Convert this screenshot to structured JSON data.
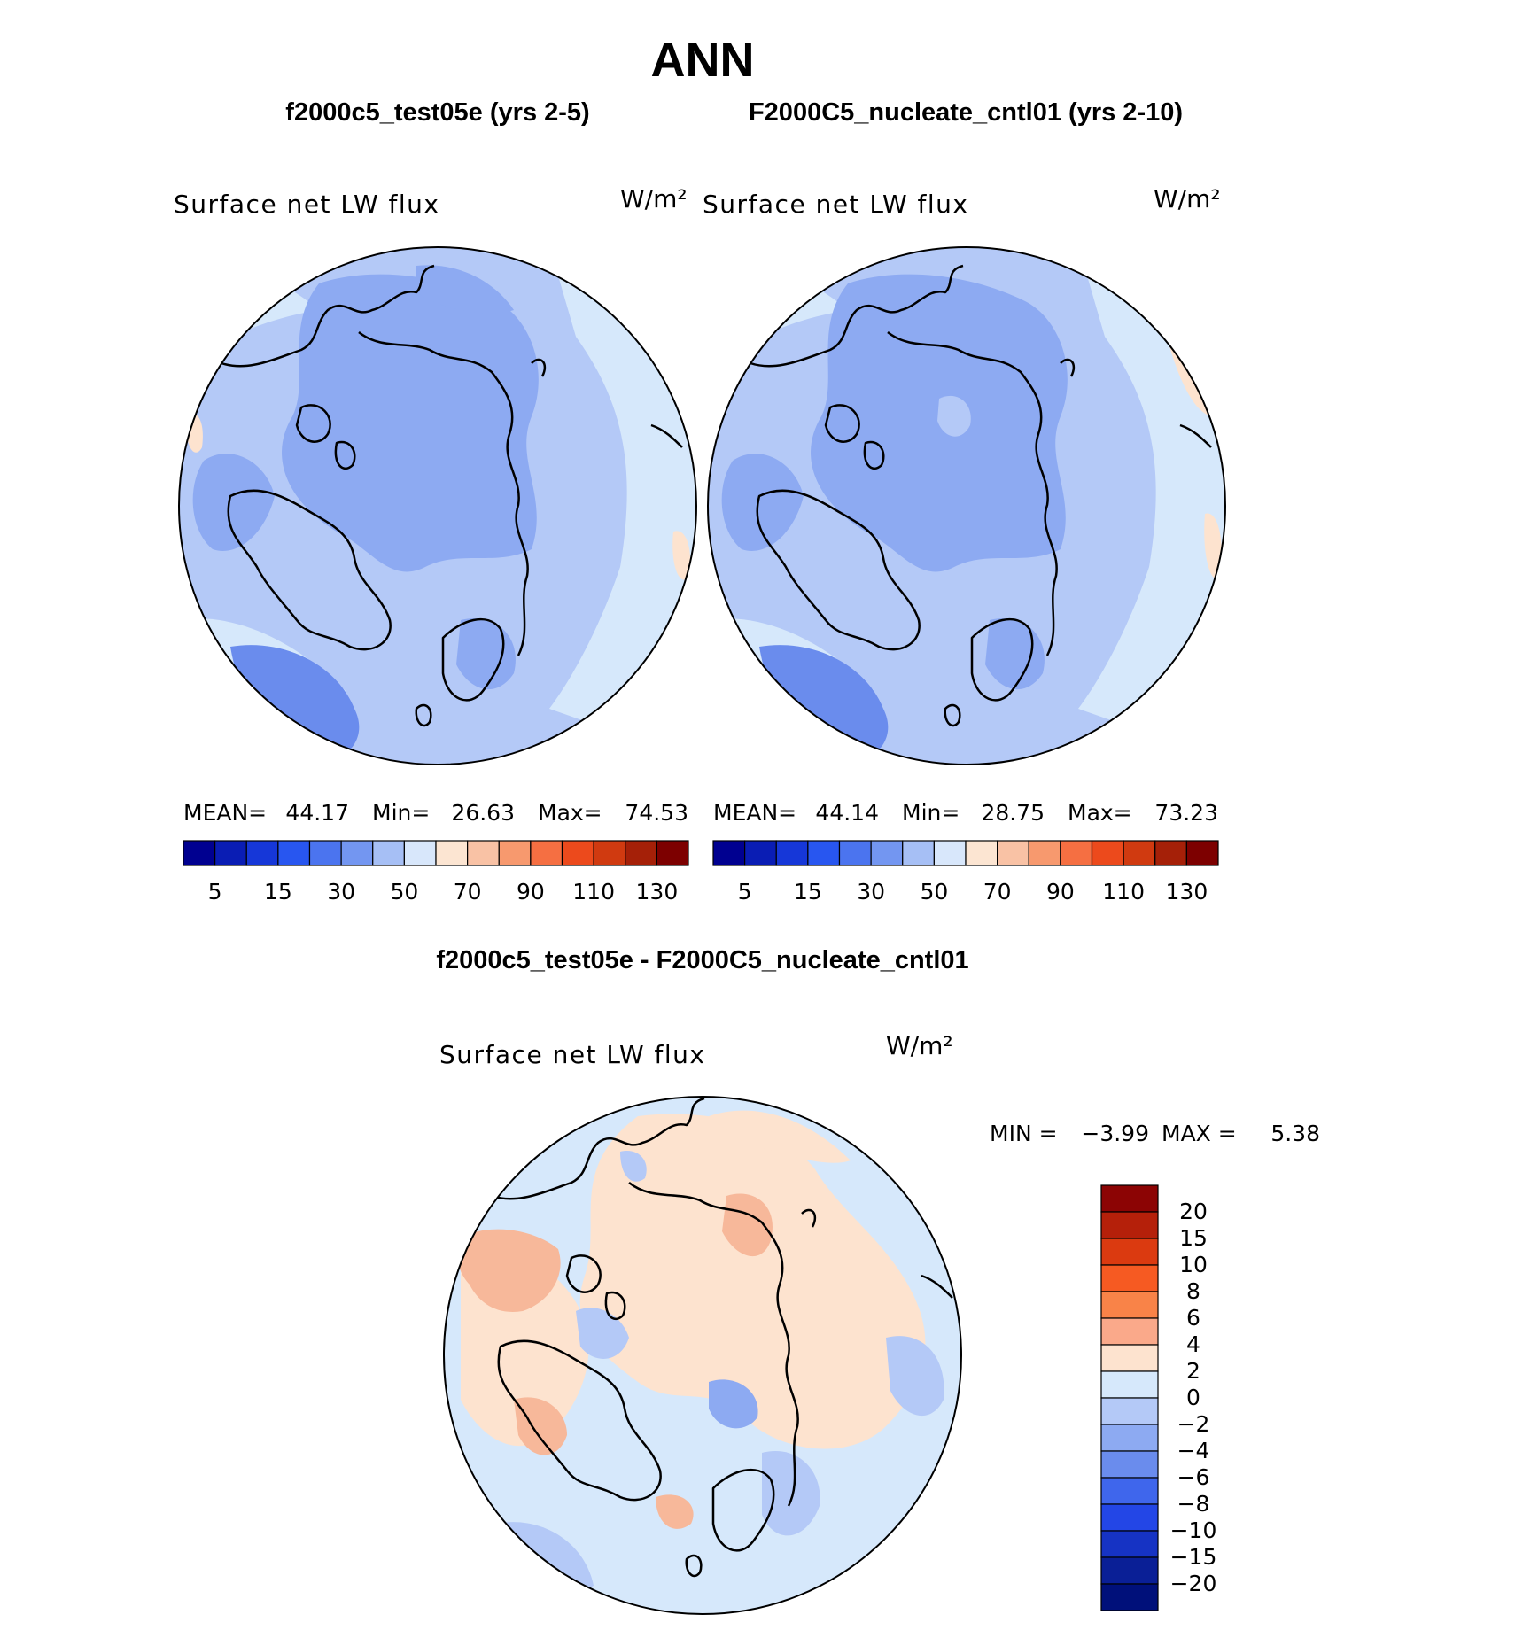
{
  "page_title": "ANN",
  "colors": {
    "coastline": "#000000",
    "ocean_light_blue": "#d6e8fb",
    "panel_medium_blue": "#b4c9f7",
    "land_blue": "#8daaf2",
    "deep_blue": "#6a8ced",
    "warm_light": "#fde3cf",
    "warm_medium": "#f7b89a"
  },
  "chart_data": [
    {
      "type": "heatmap",
      "projection": "north-polar-stereographic",
      "panel_title": "f2000c5_test05e (yrs 2-5)",
      "variable": "Surface net LW flux",
      "units": "W/m²",
      "stats": {
        "mean_label": "MEAN=",
        "mean": "44.17",
        "min_label": "Min=",
        "min": "26.63",
        "max_label": "Max=",
        "max": "74.53"
      },
      "colorbar": {
        "orientation": "horizontal",
        "tick_labels": [
          "5",
          "15",
          "30",
          "50",
          "70",
          "90",
          "110",
          "130"
        ],
        "colors": [
          "#000090",
          "#0a1db4",
          "#1637d8",
          "#2856f0",
          "#4b74ef",
          "#7396f1",
          "#a6bff5",
          "#d8e7fb",
          "#fce5d2",
          "#f9c2a5",
          "#f7996e",
          "#f56f42",
          "#ec4a1c",
          "#d03a10",
          "#a52008",
          "#7d0000"
        ]
      }
    },
    {
      "type": "heatmap",
      "projection": "north-polar-stereographic",
      "panel_title": "F2000C5_nucleate_cntl01 (yrs 2-10)",
      "variable": "Surface net LW flux",
      "units": "W/m²",
      "stats": {
        "mean_label": "MEAN=",
        "mean": "44.14",
        "min_label": "Min=",
        "min": "28.75",
        "max_label": "Max=",
        "max": "73.23"
      },
      "colorbar": {
        "orientation": "horizontal",
        "tick_labels": [
          "5",
          "15",
          "30",
          "50",
          "70",
          "90",
          "110",
          "130"
        ],
        "colors": [
          "#000090",
          "#0a1db4",
          "#1637d8",
          "#2856f0",
          "#4b74ef",
          "#7396f1",
          "#a6bff5",
          "#d8e7fb",
          "#fce5d2",
          "#f9c2a5",
          "#f7996e",
          "#f56f42",
          "#ec4a1c",
          "#d03a10",
          "#a52008",
          "#7d0000"
        ]
      }
    },
    {
      "type": "heatmap",
      "projection": "north-polar-stereographic",
      "panel_title": "f2000c5_test05e - F2000C5_nucleate_cntl01",
      "variable": "Surface net LW flux",
      "units": "W/m²",
      "stats": {
        "min_label": "MIN =",
        "min": "−3.99",
        "max_label": "MAX =",
        "max": "5.38"
      },
      "colorbar": {
        "orientation": "vertical",
        "tick_labels": [
          "20",
          "15",
          "10",
          "8",
          "6",
          "4",
          "2",
          "0",
          "−2",
          "−4",
          "−6",
          "−8",
          "−10",
          "−15",
          "−20"
        ],
        "colors": [
          "#8c0404",
          "#b5200a",
          "#db3a10",
          "#f65a22",
          "#f98348",
          "#faa98a",
          "#fde3cf",
          "#d6e8fb",
          "#b4c9f7",
          "#8daaf2",
          "#6a8ced",
          "#3f66ec",
          "#2346e6",
          "#1633c4",
          "#0a1f96",
          "#00107a"
        ]
      }
    }
  ]
}
